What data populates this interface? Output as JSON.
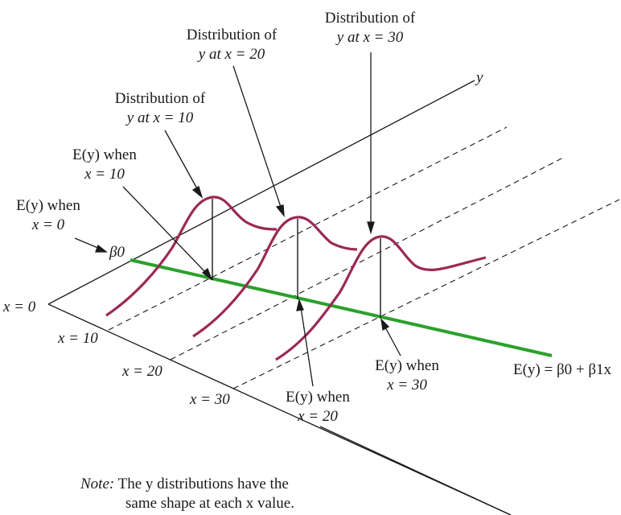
{
  "labels": {
    "dist_x10": [
      "Distribution of",
      "y at x = 10"
    ],
    "dist_x20": [
      "Distribution of",
      "y at x = 20"
    ],
    "dist_x30": [
      "Distribution of",
      "y at x = 30"
    ],
    "ey_x10": [
      "E(y) when",
      "x = 10"
    ],
    "ey_x0": [
      "E(y) when",
      "x = 0"
    ],
    "ey_x20": [
      "E(y) when",
      "x = 20"
    ],
    "ey_x30": [
      "E(y) when",
      "x = 30"
    ],
    "beta0": "β0",
    "y_axis": "y",
    "x_0": "x = 0",
    "x_10": "x = 10",
    "x_20": "x = 20",
    "x_30": "x = 30",
    "regression_eq": "E(y) = β0 + β1x"
  },
  "note": {
    "prefix": "Note:",
    "line1": "The y distributions have the",
    "line2": "same shape at each x value."
  },
  "colors": {
    "regression_line": "#2ca02c",
    "distribution_curve": "#9b2a55",
    "axes": "#1a1a1a"
  }
}
